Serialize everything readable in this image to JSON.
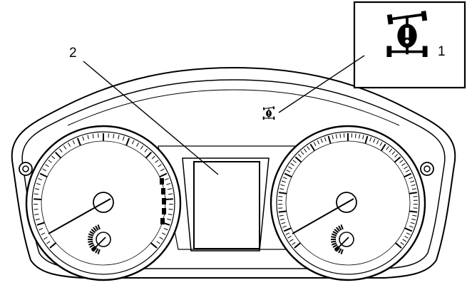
{
  "diagram": {
    "callouts": [
      {
        "id": "1",
        "label": "1",
        "refers_to": "four-wheel-drive-warning-light"
      },
      {
        "id": "2",
        "label": "2",
        "refers_to": "center-display"
      }
    ],
    "icons": {
      "warning_symbol": "4wd-warning-icon",
      "fasteners": "screw-head-icon"
    },
    "colors": {
      "line": "#000000",
      "background": "#ffffff"
    }
  }
}
